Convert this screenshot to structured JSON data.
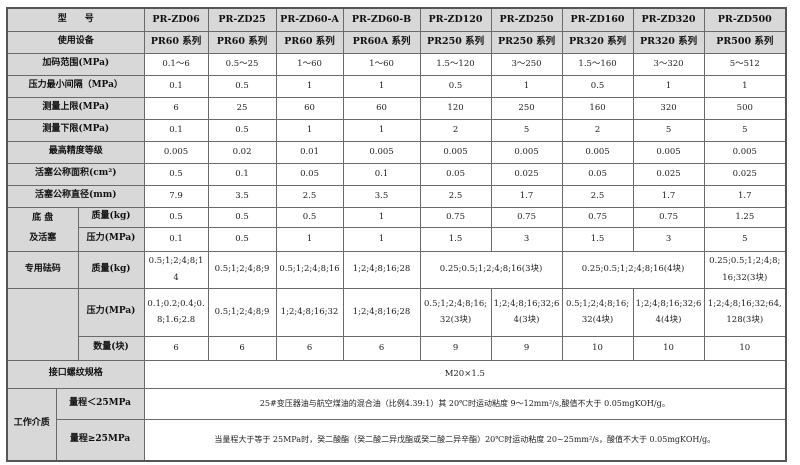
{
  "header": {
    "label": "型　　号",
    "models": [
      "PR-ZD06",
      "PR-ZD25",
      "PR-ZD60-A",
      "PR-ZD60-B",
      "PR-ZD120",
      "PR-ZD250",
      "PR-ZD160",
      "PR-ZD320",
      "PR-ZD500"
    ]
  },
  "equipment": {
    "label": "使用设备",
    "values": [
      "PR60 系列",
      "PR60 系列",
      "PR60 系列",
      "PR60A 系列",
      "PR250 系列",
      "PR250 系列",
      "PR320 系列",
      "PR320 系列",
      "PR500 系列"
    ]
  },
  "rows": [
    {
      "label": "加码范围(MPa)",
      "values": [
        "0.1～6",
        "0.5～25",
        "1～60",
        "1～60",
        "1.5～120",
        "3～250",
        "1.5～160",
        "3～320",
        "5～512"
      ]
    },
    {
      "label": "压力最小间隔（MPa）",
      "values": [
        "0.1",
        "0.5",
        "1",
        "1",
        "0.5",
        "1",
        "0.5",
        "1",
        "1"
      ]
    },
    {
      "label": "测量上限(MPa)",
      "values": [
        "6",
        "25",
        "60",
        "60",
        "120",
        "250",
        "160",
        "320",
        "500"
      ]
    },
    {
      "label": "测量下限(MPa)",
      "values": [
        "0.1",
        "0.5",
        "1",
        "1",
        "2",
        "5",
        "2",
        "5",
        "5"
      ]
    },
    {
      "label": "最高精度等级",
      "values": [
        "0.005",
        "0.02",
        "0.01",
        "0.005",
        "0.005",
        "0.005",
        "0.005",
        "0.005",
        "0.005"
      ]
    },
    {
      "label": "活塞公称面积(cm²)",
      "values": [
        "0.5",
        "0.1",
        "0.05",
        "0.1",
        "0.05",
        "0.025",
        "0.05",
        "0.025",
        "0.025"
      ]
    },
    {
      "label": "活塞公称直径(mm)",
      "values": [
        "7.9",
        "3.5",
        "2.5",
        "3.5",
        "2.5",
        "1.7",
        "2.5",
        "1.7",
        "1.7"
      ]
    }
  ],
  "base": {
    "label": "底 盘\n及活塞",
    "mass": {
      "label": "质量(kg)",
      "values": [
        "0.5",
        "0.5",
        "0.5",
        "1",
        "0.75",
        "0.75",
        "0.75",
        "0.75",
        "1.25"
      ]
    },
    "pressure": {
      "label": "压力(MPa)",
      "values": [
        "0.1",
        "0.5",
        "1",
        "1",
        "1.5",
        "3",
        "1.5",
        "3",
        "5"
      ]
    }
  },
  "weights": {
    "label": "专用砝码",
    "mass": {
      "label": "质量(kg)",
      "values": [
        "0.5;1;2;4;8;14",
        "0.5;1;2;4;8;9",
        "0.5;1;2;4;8;16",
        "1;2;4;8;16;28",
        "0.25;0.5;1;2;4;8;16(3块)",
        "0.25;0.5;1;2;4;8;16(4块)",
        "0.25;0.5;1;2;4;8;16;32(3块)"
      ]
    },
    "pressure": {
      "label": "压力(MPa)",
      "values": [
        "0.1;0.2;0.4;0.8;1.6;2.8",
        "0.5;1;2;4;8;9",
        "1;2;4;8;16;32",
        "1;2;4;8;16;28",
        "0.5;1;2;4;8;16;32(3块)",
        "1;2;4;8;16;32;64(3块)",
        "0.5;1;2;4;8;16;32(4块)",
        "1;2;4;8;16;32;64(4块)",
        "1;2;4;8;16;32;64,128(3块)"
      ]
    },
    "count": {
      "label": "数量(块)",
      "values": [
        "6",
        "6",
        "6",
        "6",
        "9",
        "9",
        "10",
        "10",
        "10"
      ]
    }
  },
  "thread": {
    "label": "接口螺纹规格",
    "value": "M20×1.5"
  },
  "medium": {
    "label": "工作介质",
    "low": {
      "label": "量程＜25MPa",
      "value": "25#变压器油与航空煤油的混合油（比例4.39:1）其 20℃时运动粘度 9～12mm²/s,酸值不大于 0.05mgKOH/g。"
    },
    "high": {
      "label": "量程≥25MPa",
      "value": "当量程大于等于 25MPa时，癸二酸酯（癸二酸二异戊酯或癸二酸二异辛酯）20℃时运动粘度 20~25mm²/s，酸值不大于 0.05mgKOH/g。"
    }
  }
}
